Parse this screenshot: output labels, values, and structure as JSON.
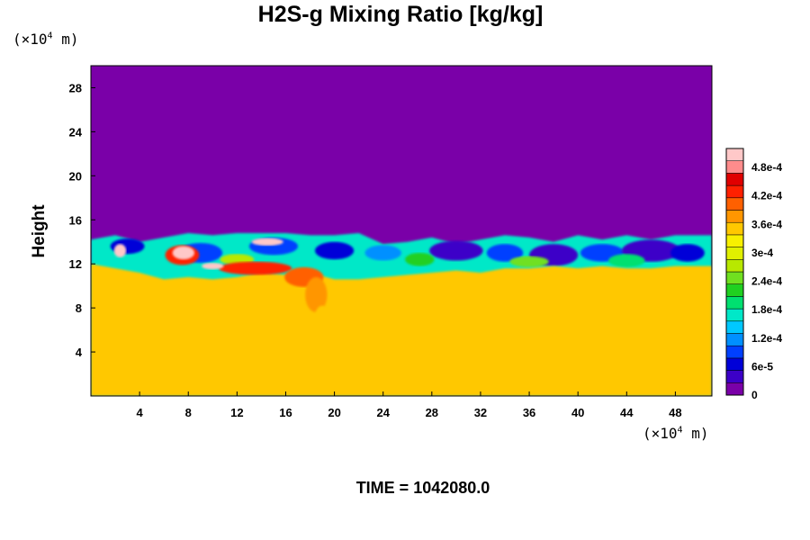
{
  "chart_data": {
    "type": "heatmap",
    "title": "H2S-g Mixing Ratio [kg/kg]",
    "ylabel": "Height",
    "xlabel": "",
    "x_unit": "m",
    "x_unit_prefix": "(×10",
    "x_unit_exp": "4",
    "y_unit_prefix": "(×10",
    "y_unit_exp": "4",
    "xlim": [
      0,
      51
    ],
    "ylim": [
      0,
      30
    ],
    "x_ticks": [
      4,
      8,
      12,
      16,
      20,
      24,
      28,
      32,
      36,
      40,
      44,
      48
    ],
    "y_ticks": [
      4,
      8,
      12,
      16,
      20,
      24,
      28
    ],
    "colorbar": {
      "range": [
        0,
        0.00052
      ],
      "tick_values": [
        0,
        6e-05,
        0.00012,
        0.00018,
        0.00024,
        0.0003,
        0.00036,
        0.00042,
        0.00048
      ],
      "tick_labels": [
        "0",
        "6e-5",
        "1.2e-4",
        "1.8e-4",
        "2.4e-4",
        "3e-4",
        "3.6e-4",
        "4.2e-4",
        "4.8e-4"
      ],
      "colors": [
        "#7a00a8",
        "#3c00c8",
        "#0000d8",
        "#0040ff",
        "#0090ff",
        "#00c8ff",
        "#00e8c8",
        "#00e070",
        "#20d020",
        "#70e020",
        "#b8e800",
        "#e0f000",
        "#f8f000",
        "#ffc800",
        "#ff9600",
        "#ff6000",
        "#ff2000",
        "#e00000",
        "#ff8c8c",
        "#ffc8c8"
      ]
    },
    "field_description_levels": {
      "upper_air": 0,
      "lower_layer": 0.00034,
      "mixing_band_min": 6e-05,
      "plume_max": 0.0005
    },
    "layer_top_profile": {
      "x": [
        0,
        2,
        4,
        6,
        8,
        10,
        12,
        14,
        16,
        18,
        20,
        22,
        24,
        26,
        28,
        30,
        32,
        34,
        36,
        38,
        40,
        42,
        44,
        46,
        48,
        51
      ],
      "y": [
        14.2,
        14.6,
        14.0,
        14.4,
        14.8,
        14.6,
        14.8,
        14.8,
        14.8,
        14.6,
        14.6,
        14.8,
        13.8,
        14.0,
        14.4,
        13.8,
        14.2,
        14.6,
        14.4,
        14.0,
        14.6,
        14.2,
        14.6,
        14.2,
        14.6,
        14.6
      ]
    },
    "lower_layer_top_profile": {
      "x": [
        0,
        2,
        4,
        6,
        8,
        10,
        12,
        14,
        16,
        18,
        20,
        22,
        24,
        26,
        28,
        30,
        32,
        34,
        36,
        38,
        40,
        42,
        44,
        46,
        48,
        51
      ],
      "y": [
        12.0,
        11.6,
        11.2,
        10.6,
        10.8,
        10.6,
        10.8,
        11.2,
        11.0,
        11.2,
        10.6,
        10.6,
        10.8,
        11.0,
        11.2,
        11.4,
        11.2,
        11.6,
        11.6,
        11.8,
        11.6,
        11.8,
        11.6,
        11.6,
        11.8,
        11.8
      ]
    }
  },
  "footer": {
    "time_label": "TIME = 1042080.0"
  }
}
